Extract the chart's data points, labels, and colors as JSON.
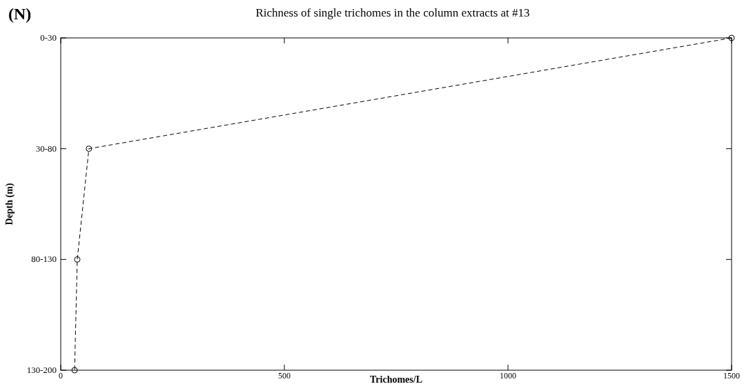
{
  "chart_data": {
    "type": "line",
    "orientation": "horizontal",
    "title": "Richness of single trichomes in the column extracts at #13",
    "xlabel": "Trichomes/L",
    "ylabel": "Depth (m)",
    "annotations": [
      "(N)"
    ],
    "categories": [
      "0-30",
      "30-80",
      "80-130",
      "130-200"
    ],
    "series": [
      {
        "color": "#000000",
        "values": [
          1500,
          63,
          37,
          31
        ]
      }
    ],
    "xlim": [
      0,
      1500
    ],
    "xticks": [
      0,
      500,
      1000,
      1500
    ],
    "marker": "circle",
    "line_style": "dashed",
    "grid": false
  }
}
